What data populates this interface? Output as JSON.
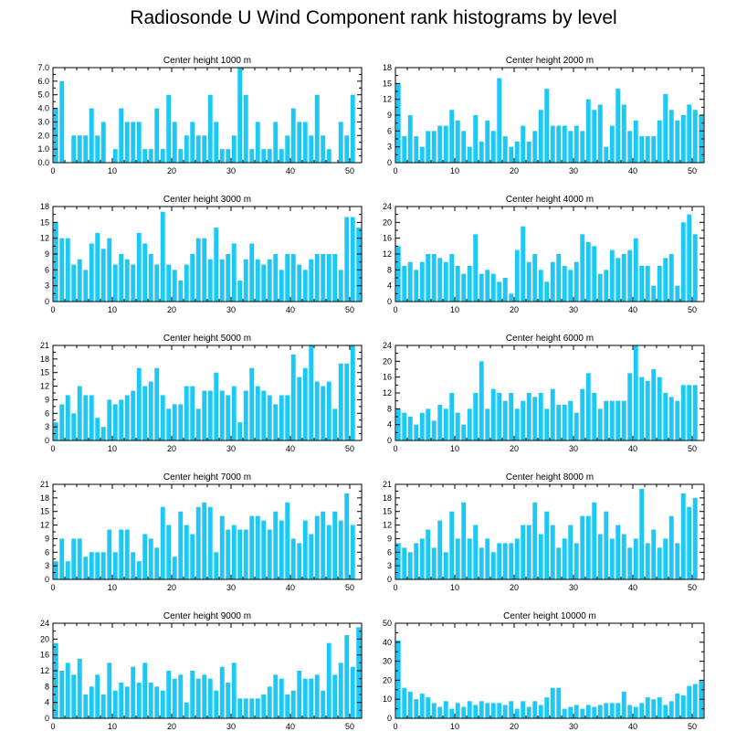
{
  "title": "Radiosonde U Wind Component rank histograms by level",
  "chart_data": [
    {
      "type": "bar",
      "title": "Center height 1000 m",
      "xlim": [
        0,
        52
      ],
      "xticks": [
        0,
        10,
        20,
        30,
        40,
        50
      ],
      "ylim": [
        0,
        7
      ],
      "yticks": [
        0,
        1,
        2,
        3,
        4,
        5,
        6,
        7
      ],
      "ytick_labels": [
        "0.0",
        "1.0",
        "2.0",
        "3.0",
        "4.0",
        "5.0",
        "6.0",
        "7.0"
      ],
      "values": [
        4,
        6,
        0,
        2,
        2,
        2,
        4,
        2,
        3,
        0,
        1,
        4,
        3,
        3,
        3,
        1,
        1,
        4,
        1,
        5,
        3,
        1,
        2,
        3,
        2,
        2,
        5,
        3,
        1,
        1,
        2,
        7,
        5,
        1,
        3,
        1,
        1,
        3,
        1,
        2,
        4,
        3,
        3,
        2,
        5,
        2,
        1,
        0,
        3,
        2,
        5
      ]
    },
    {
      "type": "bar",
      "title": "Center height 2000 m",
      "xlim": [
        0,
        52
      ],
      "xticks": [
        0,
        10,
        20,
        30,
        40,
        50
      ],
      "ylim": [
        0,
        18
      ],
      "yticks": [
        0,
        3,
        6,
        9,
        12,
        15,
        18
      ],
      "ytick_labels": [
        "0",
        "3",
        "6",
        "9",
        "12",
        "15",
        "18"
      ],
      "values": [
        15,
        5,
        9,
        5,
        3,
        6,
        6,
        7,
        7,
        10,
        8,
        6,
        3,
        9,
        4,
        8,
        6,
        16,
        5,
        3,
        4,
        7,
        4,
        6,
        10,
        14,
        7,
        7,
        7,
        6,
        7,
        6,
        12,
        10,
        11,
        3,
        7,
        14,
        11,
        6,
        8,
        5,
        5,
        5,
        8,
        13,
        10,
        8,
        9,
        11,
        10,
        9
      ]
    },
    {
      "type": "bar",
      "title": "Center height 3000 m",
      "xlim": [
        0,
        52
      ],
      "xticks": [
        0,
        10,
        20,
        30,
        40,
        50
      ],
      "ylim": [
        0,
        18
      ],
      "yticks": [
        0,
        3,
        6,
        9,
        12,
        15,
        18
      ],
      "ytick_labels": [
        "0",
        "3",
        "6",
        "9",
        "12",
        "15",
        "18"
      ],
      "values": [
        15,
        12,
        12,
        7,
        8,
        6,
        11,
        13,
        10,
        12,
        7,
        9,
        8,
        7,
        13,
        11,
        9,
        7,
        17,
        7,
        6,
        4,
        7,
        9,
        12,
        12,
        8,
        14,
        8,
        9,
        11,
        4,
        8,
        11,
        8,
        7,
        8,
        9,
        6,
        9,
        9,
        7,
        6,
        8,
        9,
        9,
        9,
        9,
        6,
        16,
        16,
        14
      ]
    },
    {
      "type": "bar",
      "title": "Center height 4000 m",
      "xlim": [
        0,
        52
      ],
      "xticks": [
        0,
        10,
        20,
        30,
        40,
        50
      ],
      "ylim": [
        0,
        24
      ],
      "yticks": [
        0,
        4,
        8,
        12,
        16,
        20,
        24
      ],
      "ytick_labels": [
        "0",
        "4",
        "8",
        "12",
        "16",
        "20",
        "24"
      ],
      "values": [
        14,
        9,
        10,
        8,
        10,
        12,
        12,
        11,
        10,
        12,
        9,
        7,
        9,
        17,
        7,
        8,
        7,
        5,
        6,
        2,
        13,
        19,
        10,
        12,
        8,
        5,
        10,
        12,
        9,
        8,
        10,
        17,
        15,
        14,
        7,
        8,
        13,
        11,
        12,
        13,
        16,
        9,
        9,
        4,
        9,
        11,
        12,
        4,
        20,
        22,
        17
      ]
    },
    {
      "type": "bar",
      "title": "Center height 5000 m",
      "xlim": [
        0,
        52
      ],
      "xticks": [
        0,
        10,
        20,
        30,
        40,
        50
      ],
      "ylim": [
        0,
        21
      ],
      "yticks": [
        0,
        3,
        6,
        9,
        12,
        15,
        18,
        21
      ],
      "ytick_labels": [
        "0",
        "3",
        "6",
        "9",
        "12",
        "15",
        "18",
        "21"
      ],
      "values": [
        4,
        8,
        10,
        6,
        12,
        10,
        10,
        5,
        3,
        9,
        8,
        9,
        10,
        11,
        16,
        12,
        13,
        16,
        10,
        7,
        8,
        8,
        12,
        12,
        7,
        11,
        11,
        15,
        11,
        10,
        12,
        4,
        11,
        16,
        12,
        11,
        10,
        8,
        10,
        10,
        19,
        14,
        16,
        21,
        13,
        12,
        13,
        7,
        17,
        17,
        21
      ]
    },
    {
      "type": "bar",
      "title": "Center height 6000 m",
      "xlim": [
        0,
        52
      ],
      "xticks": [
        0,
        10,
        20,
        30,
        40,
        50
      ],
      "ylim": [
        0,
        24
      ],
      "yticks": [
        0,
        4,
        8,
        12,
        16,
        20,
        24
      ],
      "ytick_labels": [
        "0",
        "4",
        "8",
        "12",
        "16",
        "20",
        "24"
      ],
      "values": [
        8,
        7,
        6,
        4,
        7,
        8,
        5,
        9,
        8,
        12,
        7,
        4,
        8,
        12,
        20,
        8,
        13,
        12,
        10,
        12,
        8,
        10,
        12,
        11,
        12,
        8,
        13,
        9,
        9,
        10,
        7,
        13,
        17,
        12,
        8,
        10,
        10,
        10,
        10,
        17,
        24,
        16,
        15,
        18,
        16,
        12,
        11,
        10,
        14,
        14,
        14
      ]
    },
    {
      "type": "bar",
      "title": "Center height 7000 m",
      "xlim": [
        0,
        52
      ],
      "xticks": [
        0,
        10,
        20,
        30,
        40,
        50
      ],
      "ylim": [
        0,
        21
      ],
      "yticks": [
        0,
        3,
        6,
        9,
        12,
        15,
        18,
        21
      ],
      "ytick_labels": [
        "0",
        "3",
        "6",
        "9",
        "12",
        "15",
        "18",
        "21"
      ],
      "values": [
        4,
        9,
        4,
        9,
        9,
        5,
        6,
        6,
        6,
        11,
        6,
        11,
        11,
        6,
        4,
        10,
        9,
        7,
        16,
        12,
        5,
        15,
        12,
        10,
        16,
        17,
        16,
        6,
        14,
        11,
        12,
        11,
        11,
        14,
        14,
        13,
        11,
        15,
        13,
        17,
        9,
        8,
        13,
        10,
        14,
        15,
        12,
        15,
        13,
        19,
        12
      ]
    },
    {
      "type": "bar",
      "title": "Center height 8000 m",
      "xlim": [
        0,
        52
      ],
      "xticks": [
        0,
        10,
        20,
        30,
        40,
        50
      ],
      "ylim": [
        0,
        21
      ],
      "yticks": [
        0,
        3,
        6,
        9,
        12,
        15,
        18,
        21
      ],
      "ytick_labels": [
        "0",
        "3",
        "6",
        "9",
        "12",
        "15",
        "18",
        "21"
      ],
      "values": [
        8,
        7,
        6,
        8,
        9,
        11,
        7,
        13,
        6,
        15,
        9,
        17,
        9,
        12,
        7,
        9,
        6,
        8,
        8,
        8,
        9,
        12,
        12,
        17,
        10,
        15,
        12,
        7,
        9,
        12,
        8,
        14,
        14,
        17,
        10,
        15,
        9,
        12,
        10,
        7,
        9,
        20,
        8,
        11,
        7,
        9,
        14,
        8,
        19,
        16,
        18
      ]
    },
    {
      "type": "bar",
      "title": "Center height 9000 m",
      "xlim": [
        0,
        52
      ],
      "xticks": [
        0,
        10,
        20,
        30,
        40,
        50
      ],
      "ylim": [
        0,
        24
      ],
      "yticks": [
        0,
        4,
        8,
        12,
        16,
        20,
        24
      ],
      "ytick_labels": [
        "0",
        "4",
        "8",
        "12",
        "16",
        "20",
        "24"
      ],
      "values": [
        19,
        12,
        14,
        11,
        15,
        6,
        8,
        11,
        6,
        14,
        7,
        9,
        8,
        13,
        9,
        14,
        9,
        8,
        7,
        12,
        10,
        11,
        4,
        12,
        10,
        11,
        10,
        7,
        13,
        9,
        14,
        5,
        5,
        5,
        5,
        6,
        8,
        11,
        10,
        6,
        7,
        12,
        10,
        10,
        11,
        7,
        19,
        11,
        14,
        21,
        13,
        23
      ]
    },
    {
      "type": "bar",
      "title": "Center height 10000 m",
      "xlim": [
        0,
        52
      ],
      "xticks": [
        0,
        10,
        20,
        30,
        40,
        50
      ],
      "ylim": [
        0,
        50
      ],
      "yticks": [
        0,
        10,
        20,
        30,
        40,
        50
      ],
      "ytick_labels": [
        "0",
        "10",
        "20",
        "30",
        "40",
        "50"
      ],
      "values": [
        41,
        16,
        14,
        10,
        13,
        11,
        8,
        6,
        9,
        5,
        8,
        6,
        9,
        7,
        9,
        8,
        8,
        8,
        7,
        9,
        5,
        9,
        6,
        9,
        7,
        11,
        16,
        16,
        5,
        6,
        7,
        5,
        7,
        6,
        7,
        8,
        8,
        8,
        14,
        7,
        6,
        8,
        11,
        10,
        11,
        7,
        9,
        13,
        12,
        17,
        18,
        20
      ]
    }
  ]
}
